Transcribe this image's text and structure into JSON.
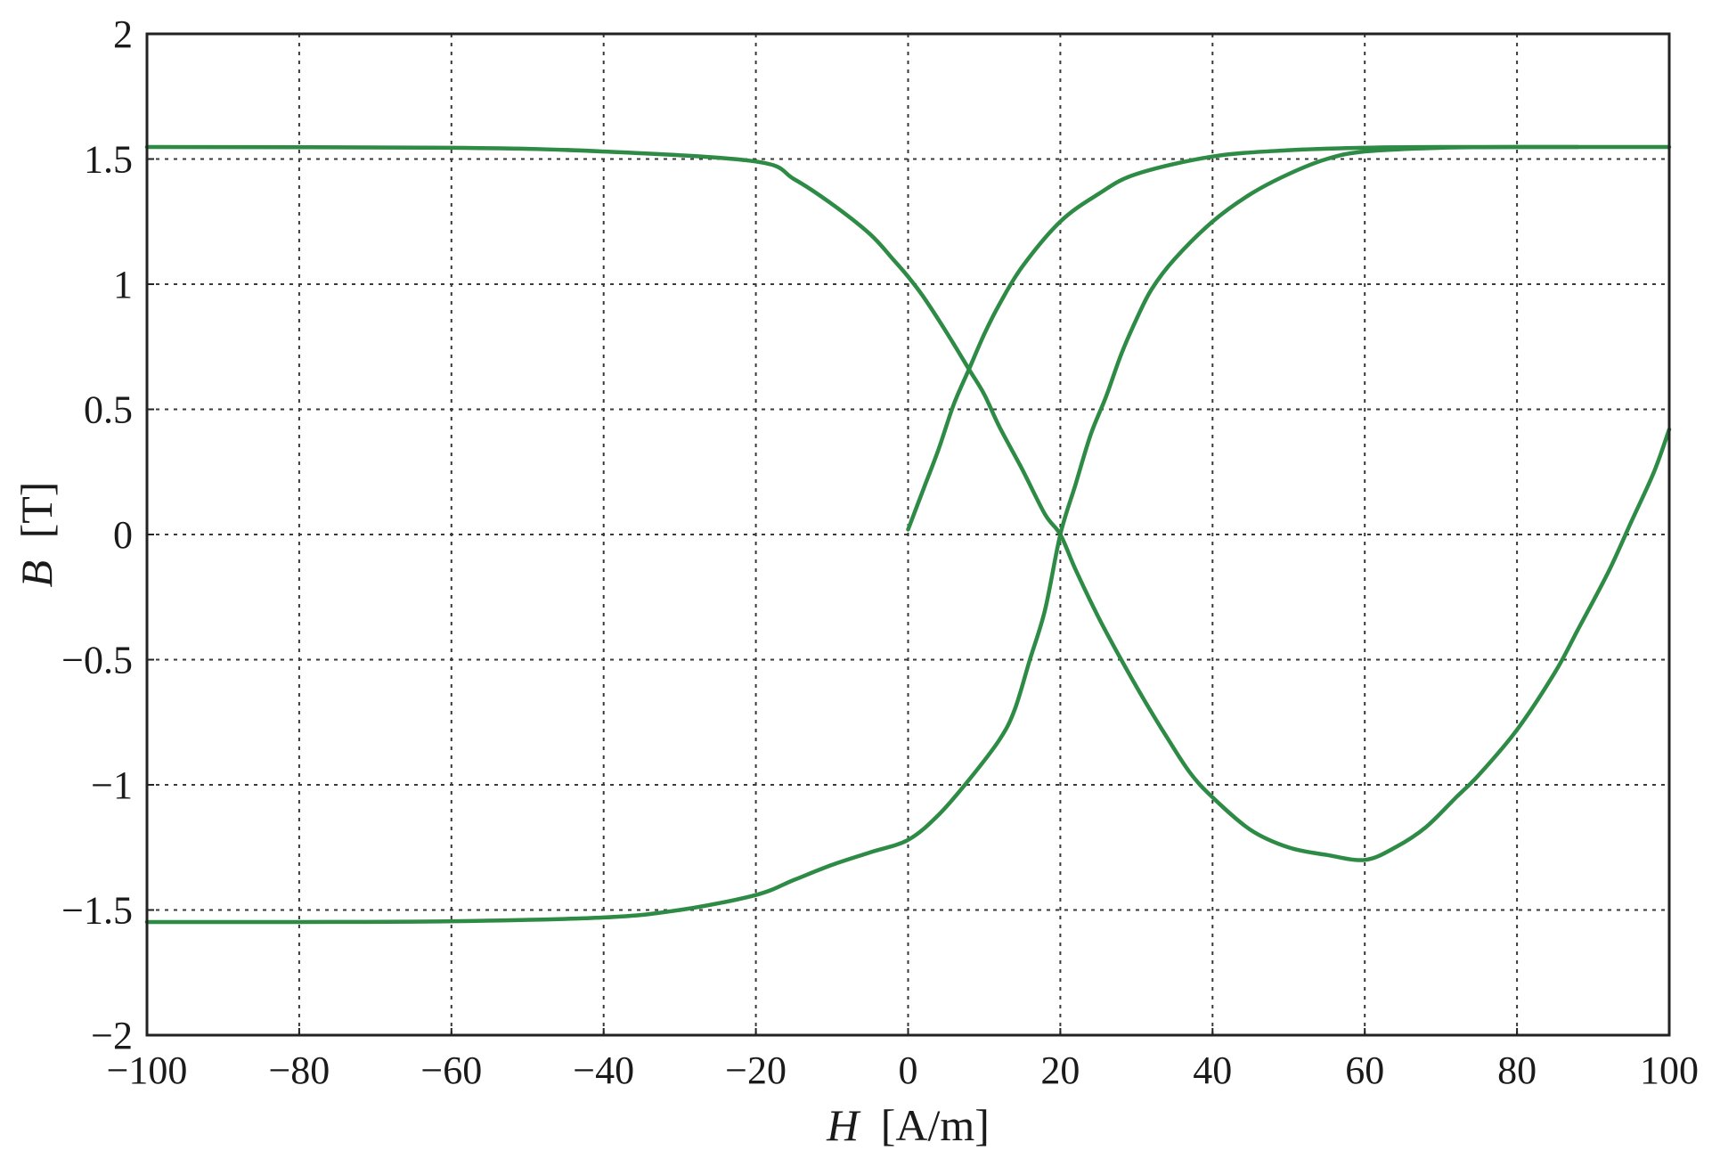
{
  "chart_data": {
    "type": "line",
    "title": "",
    "xlabel": {
      "var": "H",
      "unit": "[A/m]"
    },
    "ylabel": {
      "var": "B",
      "unit": "[T]"
    },
    "xlim": [
      -100,
      100
    ],
    "ylim": [
      -2,
      2
    ],
    "xticks": [
      -100,
      -80,
      -60,
      -40,
      -20,
      0,
      20,
      40,
      60,
      80,
      100
    ],
    "yticks": [
      -2,
      -1.5,
      -1,
      -0.5,
      0,
      0.5,
      1,
      1.5,
      2
    ],
    "xtick_labels": [
      "−100",
      "−80",
      "−60",
      "−40",
      "−20",
      "0",
      "20",
      "40",
      "60",
      "80",
      "100"
    ],
    "ytick_labels": [
      "−2",
      "−1.5",
      "−1",
      "−0.5",
      "0",
      "0.5",
      "1",
      "1.5",
      "2"
    ],
    "grid": true,
    "legend": "none",
    "color": "#2e8b45",
    "series": [
      {
        "points": [
          [
            -100,
            1.548
          ],
          [
            -60,
            1.545
          ],
          [
            -40,
            1.53
          ],
          [
            -20,
            1.49
          ],
          [
            -15,
            1.42
          ],
          [
            -10,
            1.32
          ],
          [
            -5,
            1.2
          ],
          [
            -2,
            1.1
          ],
          [
            0,
            1.03
          ],
          [
            2,
            0.95
          ],
          [
            5,
            0.81
          ],
          [
            8,
            0.66
          ],
          [
            10,
            0.56
          ],
          [
            12,
            0.43
          ],
          [
            15,
            0.26
          ],
          [
            18,
            0.08
          ],
          [
            20,
            0.0
          ],
          [
            22,
            -0.14
          ],
          [
            25,
            -0.33
          ],
          [
            28,
            -0.5
          ],
          [
            31,
            -0.66
          ],
          [
            34,
            -0.81
          ],
          [
            37,
            -0.95
          ],
          [
            40,
            -1.05
          ],
          [
            45,
            -1.18
          ],
          [
            50,
            -1.25
          ],
          [
            55,
            -1.28
          ],
          [
            60,
            -1.3
          ],
          [
            64,
            -1.25
          ],
          [
            68,
            -1.17
          ],
          [
            72,
            -1.05
          ],
          [
            75,
            -0.96
          ],
          [
            80,
            -0.78
          ],
          [
            85,
            -0.55
          ],
          [
            88,
            -0.38
          ],
          [
            92,
            -0.15
          ],
          [
            95,
            0.05
          ],
          [
            98,
            0.25
          ],
          [
            100,
            0.42
          ]
        ]
      },
      {
        "points": [
          [
            0,
            0.02
          ],
          [
            2,
            0.18
          ],
          [
            4,
            0.34
          ],
          [
            6,
            0.52
          ],
          [
            8,
            0.66
          ],
          [
            10,
            0.8
          ],
          [
            12,
            0.92
          ],
          [
            15,
            1.07
          ],
          [
            20,
            1.25
          ],
          [
            25,
            1.36
          ],
          [
            30,
            1.44
          ],
          [
            40,
            1.51
          ],
          [
            50,
            1.535
          ],
          [
            60,
            1.545
          ],
          [
            70,
            1.548
          ],
          [
            88,
            1.548
          ]
        ]
      },
      {
        "points": [
          [
            -100,
            -1.548
          ],
          [
            -80,
            -1.548
          ],
          [
            -60,
            -1.545
          ],
          [
            -40,
            -1.53
          ],
          [
            -30,
            -1.5
          ],
          [
            -20,
            -1.44
          ],
          [
            -15,
            -1.38
          ],
          [
            -10,
            -1.32
          ],
          [
            -5,
            -1.27
          ],
          [
            0,
            -1.22
          ],
          [
            4,
            -1.12
          ],
          [
            8,
            -0.98
          ],
          [
            12,
            -0.82
          ],
          [
            14,
            -0.7
          ],
          [
            16,
            -0.5
          ],
          [
            18,
            -0.3
          ],
          [
            20,
            0.0
          ],
          [
            22,
            0.2
          ],
          [
            24,
            0.4
          ],
          [
            26,
            0.55
          ],
          [
            28,
            0.72
          ],
          [
            30,
            0.86
          ],
          [
            32,
            0.98
          ],
          [
            35,
            1.1
          ],
          [
            40,
            1.25
          ],
          [
            45,
            1.36
          ],
          [
            50,
            1.44
          ],
          [
            55,
            1.5
          ],
          [
            60,
            1.53
          ],
          [
            70,
            1.545
          ],
          [
            80,
            1.548
          ],
          [
            100,
            1.548
          ]
        ]
      }
    ]
  }
}
